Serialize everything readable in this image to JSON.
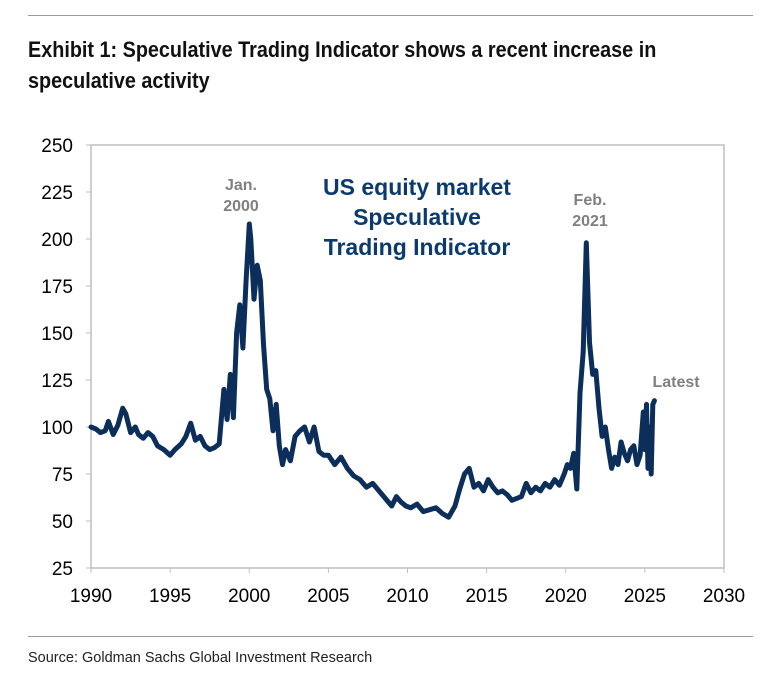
{
  "header": {
    "title": "Exhibit 1: Speculative Trading Indicator shows a recent increase in speculative activity"
  },
  "footer": {
    "source": "Source: Goldman Sachs Global Investment Research"
  },
  "colors": {
    "line": "#0b2f5a",
    "annotation_gray": "#808080",
    "inner_title": "#0b3a6e",
    "frame": "#bfbfbf"
  },
  "chart_data": {
    "type": "line",
    "title": "",
    "inner_title": [
      "US equity market",
      "Speculative",
      "Trading Indicator"
    ],
    "xlabel": "",
    "ylabel": "",
    "xlim": [
      1990,
      2030
    ],
    "ylim": [
      25,
      250
    ],
    "x_ticks": [
      1990,
      1995,
      2000,
      2005,
      2010,
      2015,
      2020,
      2025,
      2030
    ],
    "y_ticks": [
      25,
      50,
      75,
      100,
      125,
      150,
      175,
      200,
      225,
      250
    ],
    "grid": false,
    "legend": "none",
    "annotations": [
      {
        "label": [
          "Jan.",
          "2000"
        ],
        "x": 2000.0,
        "y": 208
      },
      {
        "label": [
          "Feb.",
          "2021"
        ],
        "x": 2021.1,
        "y": 198
      },
      {
        "label": [
          "Latest"
        ],
        "x": 2025.6,
        "y": 114
      }
    ],
    "series": [
      {
        "x": [
          1990.0,
          1990.3,
          1990.6,
          1990.9,
          1991.1,
          1991.4,
          1991.7,
          1992.0,
          1992.2,
          1992.5,
          1992.8,
          1993.0,
          1993.3,
          1993.6,
          1993.9,
          1994.2,
          1994.6,
          1995.0,
          1995.3,
          1995.7,
          1996.0,
          1996.3,
          1996.6,
          1996.9,
          1997.2,
          1997.5,
          1997.8,
          1998.1,
          1998.4,
          1998.6,
          1998.8,
          1999.0,
          1999.2,
          1999.4,
          1999.6,
          1999.8,
          2000.0,
          2000.1,
          2000.3,
          2000.5,
          2000.7,
          2000.9,
          2001.1,
          2001.3,
          2001.5,
          2001.7,
          2001.9,
          2002.1,
          2002.3,
          2002.6,
          2002.9,
          2003.2,
          2003.5,
          2003.8,
          2004.1,
          2004.4,
          2004.7,
          2005.0,
          2005.4,
          2005.8,
          2006.2,
          2006.6,
          2007.0,
          2007.4,
          2007.8,
          2008.2,
          2008.6,
          2009.0,
          2009.3,
          2009.6,
          2009.9,
          2010.2,
          2010.6,
          2011.0,
          2011.4,
          2011.8,
          2012.2,
          2012.6,
          2013.0,
          2013.3,
          2013.6,
          2013.9,
          2014.2,
          2014.5,
          2014.8,
          2015.1,
          2015.4,
          2015.7,
          2016.0,
          2016.3,
          2016.6,
          2016.9,
          2017.2,
          2017.5,
          2017.8,
          2018.1,
          2018.4,
          2018.7,
          2019.0,
          2019.3,
          2019.6,
          2019.9,
          2020.1,
          2020.3,
          2020.5,
          2020.7,
          2020.9,
          2021.1,
          2021.3,
          2021.5,
          2021.7,
          2021.9,
          2022.1,
          2022.3,
          2022.5,
          2022.7,
          2022.9,
          2023.1,
          2023.3,
          2023.5,
          2023.7,
          2023.9,
          2024.1,
          2024.3,
          2024.5,
          2024.7,
          2024.9,
          2025.0,
          2025.1,
          2025.2,
          2025.3,
          2025.4,
          2025.5,
          2025.6
        ],
        "values": [
          100,
          99,
          97,
          98,
          103,
          96,
          101,
          110,
          107,
          97,
          100,
          96,
          94,
          97,
          95,
          90,
          88,
          85,
          88,
          91,
          95,
          102,
          93,
          95,
          90,
          88,
          89,
          91,
          120,
          104,
          128,
          105,
          150,
          165,
          142,
          178,
          208,
          200,
          168,
          186,
          178,
          144,
          120,
          115,
          98,
          112,
          90,
          80,
          88,
          82,
          95,
          98,
          100,
          92,
          100,
          87,
          85,
          85,
          80,
          84,
          78,
          74,
          72,
          68,
          70,
          66,
          62,
          58,
          63,
          60,
          58,
          57,
          59,
          55,
          56,
          57,
          54,
          52,
          58,
          67,
          75,
          78,
          68,
          70,
          66,
          72,
          68,
          65,
          66,
          64,
          61,
          62,
          63,
          70,
          65,
          68,
          66,
          70,
          68,
          72,
          69,
          75,
          80,
          78,
          86,
          67,
          118,
          140,
          198,
          145,
          128,
          130,
          110,
          95,
          100,
          88,
          78,
          84,
          80,
          92,
          86,
          82,
          88,
          90,
          80,
          85,
          108,
          88,
          112,
          78,
          100,
          75,
          112,
          114
        ]
      }
    ]
  }
}
